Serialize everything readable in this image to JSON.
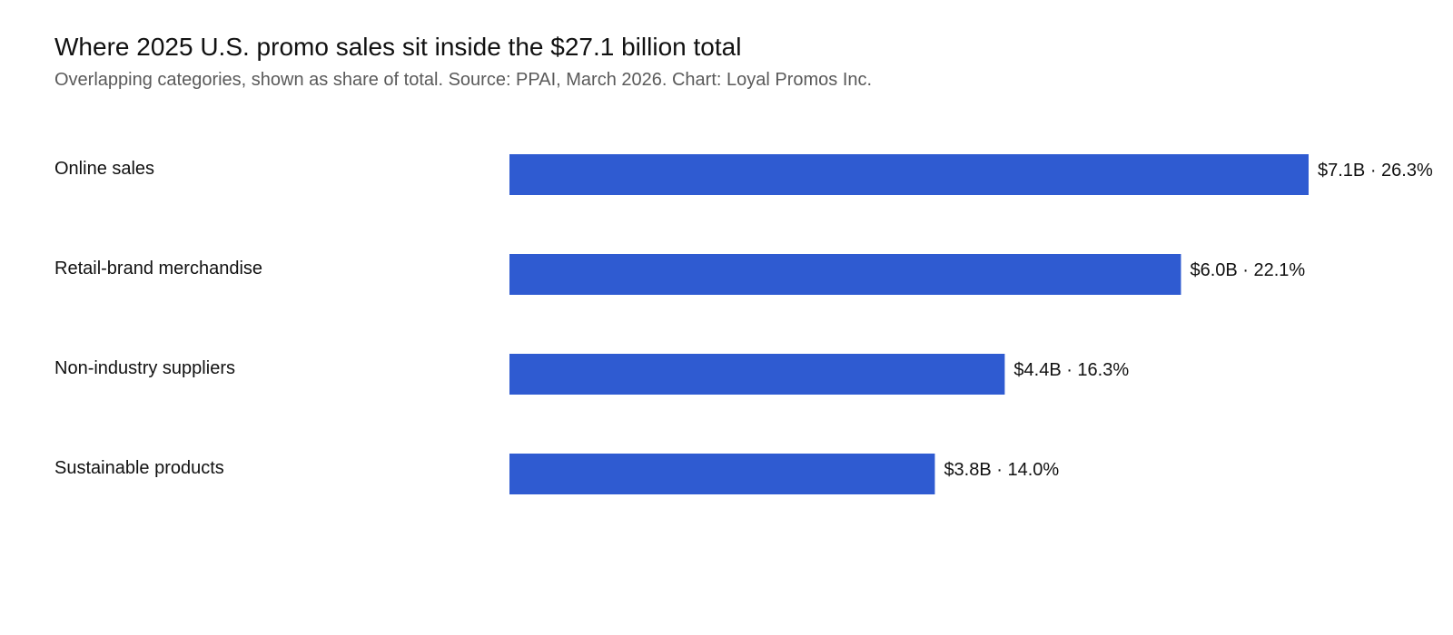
{
  "chart_data": {
    "type": "bar",
    "orientation": "horizontal",
    "title": "Where 2025 U.S. promo sales sit inside the $27.1 billion total",
    "subtitle": "Overlapping categories, shown as share of total. Source: PPAI, March 2026. Chart: Loyal Promos Inc.",
    "categories": [
      "Online sales",
      "Retail-brand merchandise",
      "Non-industry suppliers",
      "Sustainable products"
    ],
    "values": [
      26.3,
      22.1,
      16.3,
      14.0
    ],
    "value_unit": "% of total",
    "amounts_billion": [
      7.1,
      6.0,
      4.4,
      3.8
    ],
    "data_labels": [
      "$7.1B · 26.3%",
      "$6.0B · 22.1%",
      "$4.4B · 16.3%",
      "$3.8B · 14.0%"
    ],
    "xlim": [
      0,
      26.3
    ],
    "grid": false,
    "legend": "none",
    "bar_color": "#2f5bd1"
  }
}
